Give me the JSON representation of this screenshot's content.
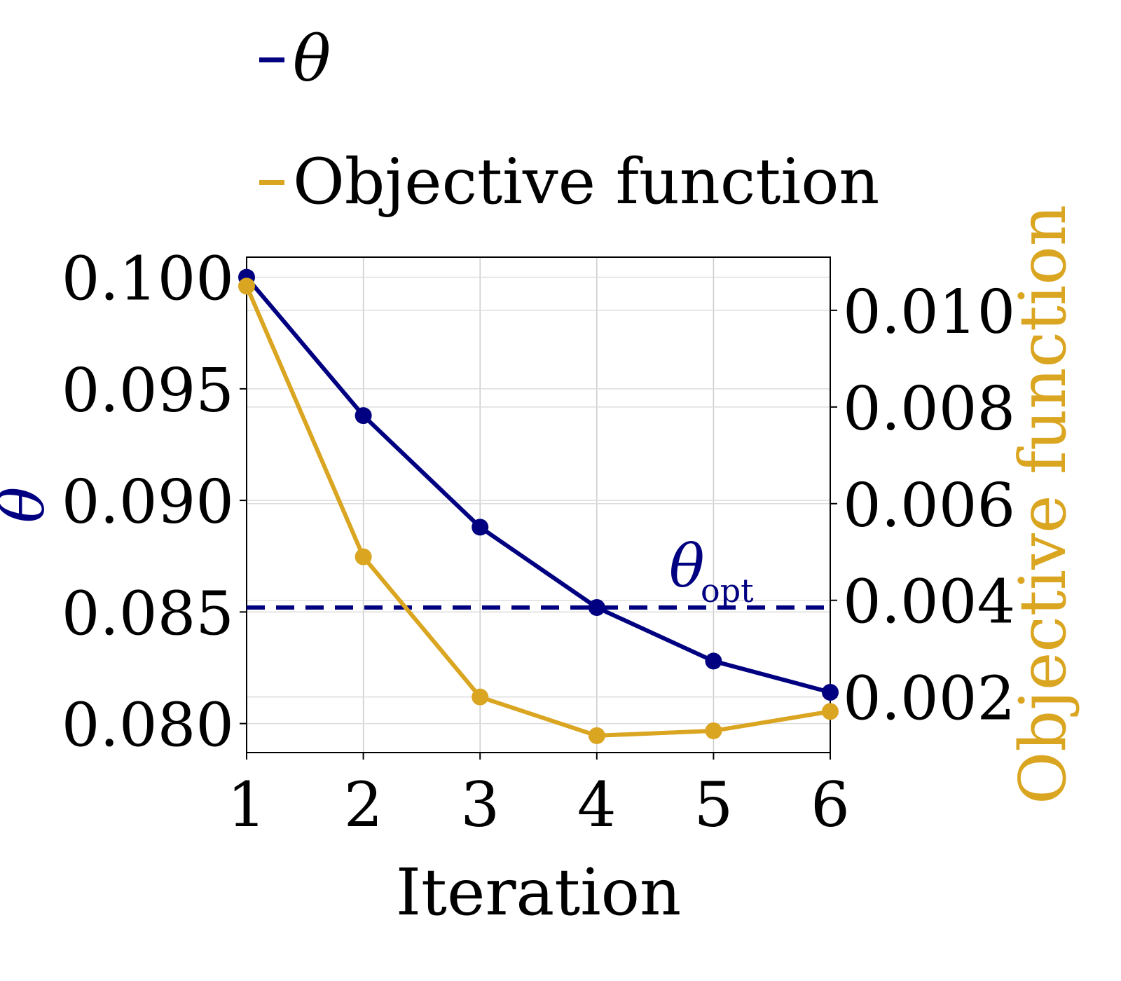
{
  "legend": {
    "items": [
      {
        "label": "θ",
        "color": "#000080"
      },
      {
        "label": "Objective function",
        "color": "#DAA520"
      }
    ]
  },
  "chart_data": {
    "type": "line",
    "xlabel": "Iteration",
    "ylabel_left": "θ",
    "ylabel_right": "Objective function",
    "x": [
      1,
      2,
      3,
      4,
      5,
      6
    ],
    "x_ticks": [
      "1",
      "2",
      "3",
      "4",
      "5",
      "6"
    ],
    "xlim": [
      1,
      6
    ],
    "ylim_left": [
      0.0787,
      0.1009
    ],
    "ylim_right": [
      0.00085,
      0.0111
    ],
    "y_ticks_left": [
      "0.080",
      "0.085",
      "0.090",
      "0.095",
      "0.100"
    ],
    "y_ticks_right": [
      "0.002",
      "0.004",
      "0.006",
      "0.008",
      "0.010"
    ],
    "grid": true,
    "legend_position": "top",
    "series": [
      {
        "name": "θ",
        "axis": "left",
        "color": "#000080",
        "values": [
          0.1,
          0.0938,
          0.0888,
          0.0852,
          0.0828,
          0.0814
        ]
      },
      {
        "name": "Objective function",
        "axis": "right",
        "color": "#DAA520",
        "values": [
          0.0105,
          0.0049,
          0.002,
          0.0012,
          0.0013,
          0.0017
        ]
      }
    ],
    "reference_line": {
      "label": "θ",
      "label_subscript": "opt",
      "axis": "left",
      "value": 0.0852,
      "style": "dashed",
      "color": "#000080"
    }
  }
}
